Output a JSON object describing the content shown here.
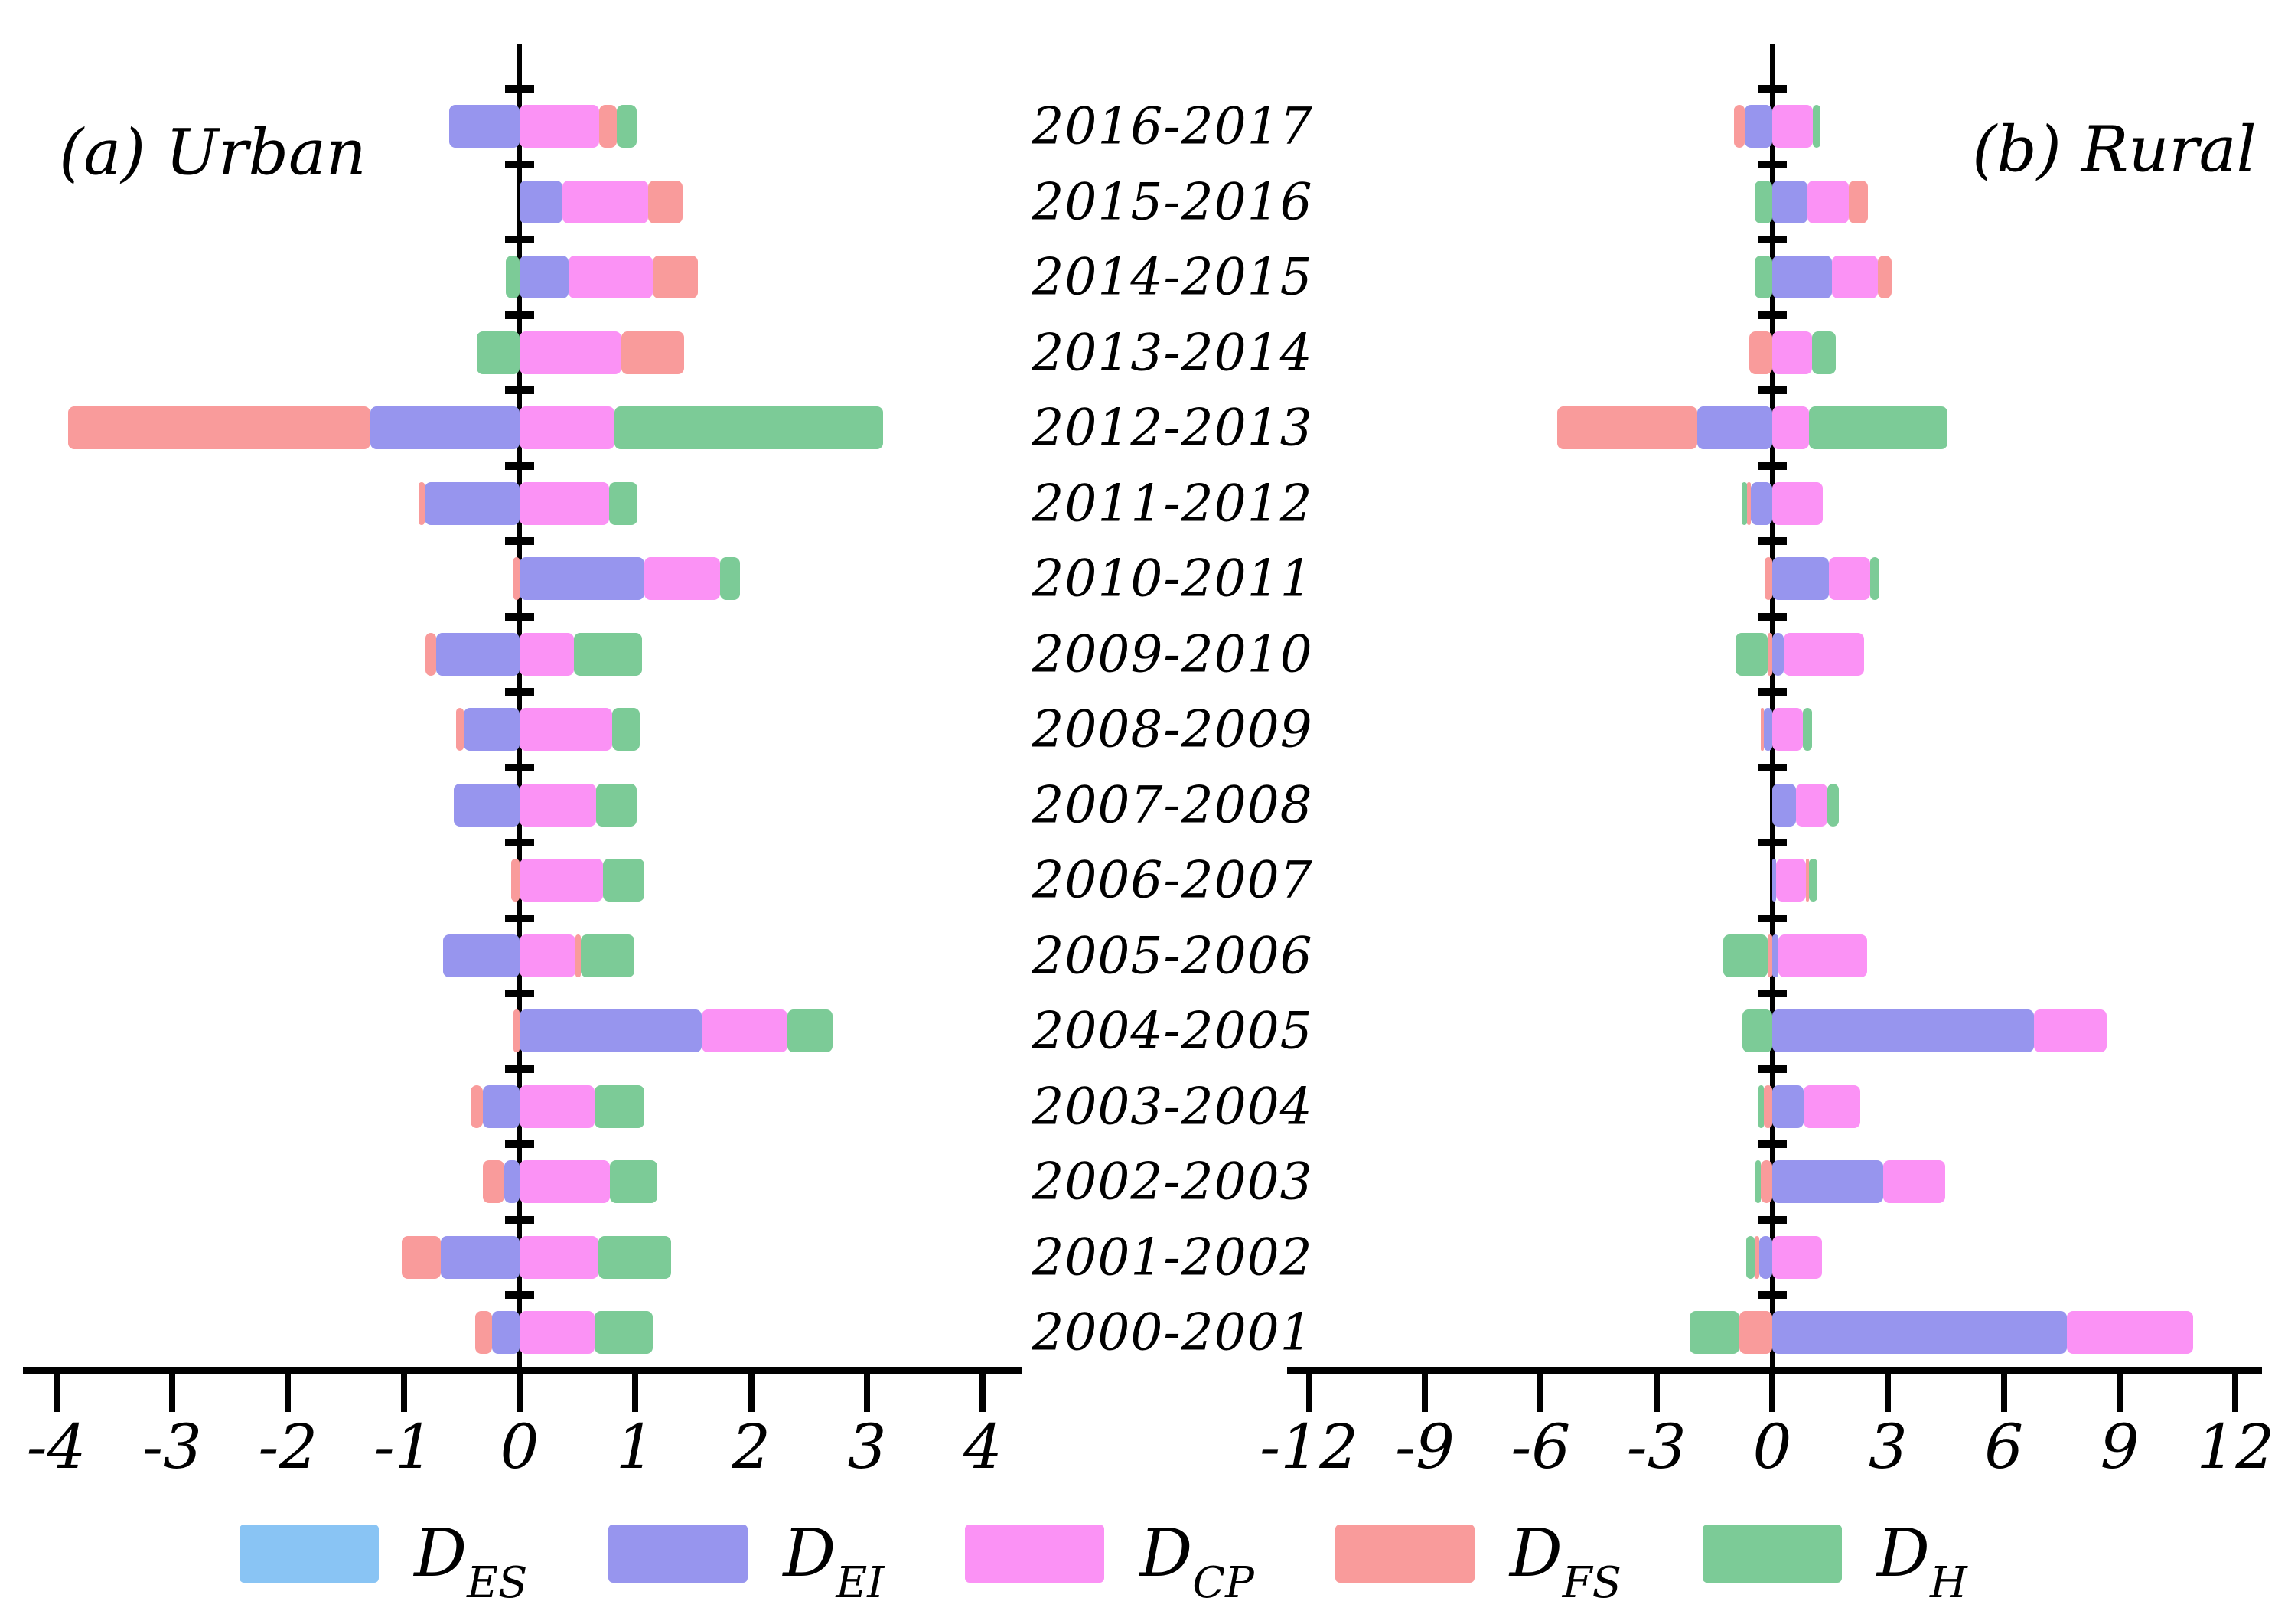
{
  "figure": {
    "background": "#ffffff",
    "panels": [
      {
        "id": "urban",
        "title": "(a) Urban"
      },
      {
        "id": "rural",
        "title": "(b) Rural"
      }
    ],
    "legend": {
      "items": [
        {
          "name": "D_ES",
          "base": "D",
          "sub": "ES",
          "color": "#89C4F4"
        },
        {
          "name": "D_EI",
          "base": "D",
          "sub": "EI",
          "color": "#9795EE"
        },
        {
          "name": "D_CP",
          "base": "D",
          "sub": "CP",
          "color": "#FB92F5"
        },
        {
          "name": "D_FS",
          "base": "D",
          "sub": "FS",
          "color": "#F99B9B"
        },
        {
          "name": "D_H",
          "base": "D",
          "sub": "H",
          "color": "#7CCB97"
        }
      ]
    }
  },
  "chart_data": [
    {
      "type": "bar",
      "orientation": "horizontal-stacked-diverging",
      "title": "(a) Urban",
      "categories": [
        "2016-2017",
        "2015-2016",
        "2014-2015",
        "2013-2014",
        "2012-2013",
        "2011-2012",
        "2010-2011",
        "2009-2010",
        "2008-2009",
        "2007-2008",
        "2006-2007",
        "2005-2006",
        "2004-2005",
        "2003-2004",
        "2002-2003",
        "2001-2002",
        "2000-2001"
      ],
      "series": [
        {
          "name": "D_ES",
          "values": [
            0,
            0,
            0,
            0,
            0,
            0,
            0,
            0,
            0,
            0,
            0,
            0,
            0,
            0,
            0,
            0,
            0
          ]
        },
        {
          "name": "D_EI",
          "values": [
            -0.61,
            0.37,
            0.42,
            0,
            -1.29,
            -0.82,
            1.08,
            -0.72,
            -0.48,
            -0.57,
            0,
            -0.66,
            1.57,
            -0.32,
            -0.13,
            -0.68,
            -0.24
          ]
        },
        {
          "name": "D_CP",
          "values": [
            0.69,
            0.74,
            0.73,
            0.88,
            0.82,
            0.77,
            0.65,
            0.47,
            0.8,
            0.66,
            0.72,
            0.48,
            0.74,
            0.65,
            0.78,
            0.68,
            0.65
          ]
        },
        {
          "name": "D_FS",
          "values": [
            0.15,
            0.3,
            0.39,
            0.54,
            -2.61,
            -0.05,
            -0.05,
            -0.09,
            -0.07,
            0,
            -0.07,
            0.05,
            -0.05,
            -0.1,
            -0.19,
            -0.34,
            -0.14
          ]
        },
        {
          "name": "D_H",
          "values": [
            0.17,
            0,
            -0.12,
            -0.37,
            2.32,
            0.25,
            0.17,
            0.59,
            0.24,
            0.35,
            0.36,
            0.46,
            0.39,
            0.43,
            0.41,
            0.63,
            0.5
          ]
        }
      ],
      "xlim": [
        -4,
        4
      ],
      "xticks": [
        -4,
        -3,
        -2,
        -1,
        0,
        1,
        2,
        3,
        4
      ],
      "grid": false,
      "legend_position": "bottom"
    },
    {
      "type": "bar",
      "orientation": "horizontal-stacked-diverging",
      "title": "(b) Rural",
      "categories": [
        "2016-2017",
        "2015-2016",
        "2014-2015",
        "2013-2014",
        "2012-2013",
        "2011-2012",
        "2010-2011",
        "2009-2010",
        "2008-2009",
        "2007-2008",
        "2006-2007",
        "2005-2006",
        "2004-2005",
        "2003-2004",
        "2002-2003",
        "2001-2002",
        "2000-2001"
      ],
      "series": [
        {
          "name": "D_ES",
          "values": [
            0,
            0,
            0,
            0,
            0,
            0,
            0,
            0,
            0,
            0,
            0,
            0,
            0,
            0,
            0,
            0,
            0
          ]
        },
        {
          "name": "D_EI",
          "values": [
            -0.71,
            0.91,
            1.54,
            0,
            -1.94,
            -0.55,
            1.47,
            0.3,
            -0.21,
            0.62,
            0.1,
            0.15,
            6.78,
            0.81,
            2.87,
            -0.34,
            7.64
          ]
        },
        {
          "name": "D_CP",
          "values": [
            1.05,
            1.07,
            1.2,
            1.04,
            0.95,
            1.3,
            1.07,
            2.08,
            0.8,
            0.8,
            0.78,
            2.3,
            1.88,
            1.47,
            1.6,
            1.29,
            3.27
          ]
        },
        {
          "name": "D_FS",
          "values": [
            -0.29,
            0.49,
            0.36,
            -0.59,
            -3.62,
            -0.1,
            -0.2,
            -0.12,
            -0.08,
            0,
            0.07,
            -0.12,
            0,
            -0.22,
            -0.3,
            -0.12,
            -0.85
          ]
        },
        {
          "name": "D_H",
          "values": [
            0.19,
            -0.46,
            -0.46,
            0.6,
            3.58,
            -0.15,
            0.24,
            -0.83,
            0.24,
            0.3,
            0.22,
            -1.15,
            -0.77,
            -0.14,
            -0.14,
            -0.21,
            -1.3
          ]
        }
      ],
      "xlim": [
        -12,
        12
      ],
      "xticks": [
        -12,
        -9,
        -6,
        -3,
        0,
        3,
        6,
        9,
        12
      ],
      "grid": false,
      "legend_position": "bottom"
    }
  ]
}
